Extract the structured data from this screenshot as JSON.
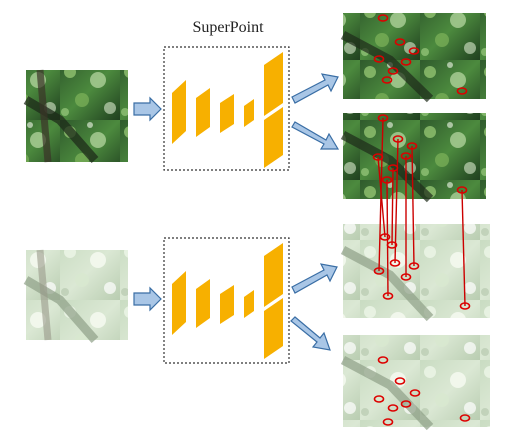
{
  "title": "SuperPoint",
  "colors": {
    "layer": "#f7b000",
    "arrow_fill": "#a9c6e6",
    "arrow_stroke": "#3a6ea5",
    "match_line": "#cc0000",
    "keypoint": "#dd0000",
    "box_border": "#333333"
  }
}
